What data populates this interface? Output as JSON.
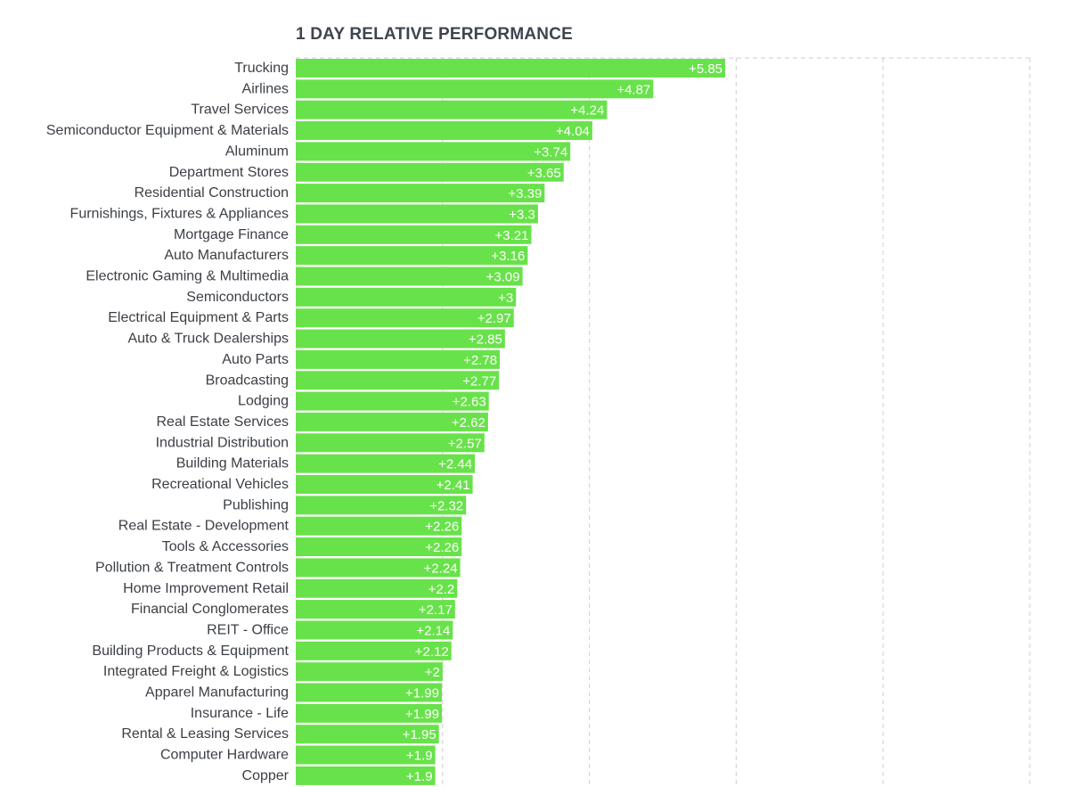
{
  "chart_data": {
    "type": "bar",
    "orientation": "horizontal",
    "title": "1 DAY RELATIVE PERFORMANCE",
    "xlabel": "",
    "ylabel": "",
    "xlim": [
      0,
      10
    ],
    "grid": true,
    "bar_color": "#68e24a",
    "grid_color": "#cfcfcf",
    "label_color": "#3b3f45",
    "value_label_color": "#ffffff",
    "categories": [
      "Trucking",
      "Airlines",
      "Travel Services",
      "Semiconductor Equipment & Materials",
      "Aluminum",
      "Department Stores",
      "Residential Construction",
      "Furnishings, Fixtures & Appliances",
      "Mortgage Finance",
      "Auto Manufacturers",
      "Electronic Gaming & Multimedia",
      "Semiconductors",
      "Electrical Equipment & Parts",
      "Auto & Truck Dealerships",
      "Auto Parts",
      "Broadcasting",
      "Lodging",
      "Real Estate Services",
      "Industrial Distribution",
      "Building Materials",
      "Recreational Vehicles",
      "Publishing",
      "Real Estate - Development",
      "Tools & Accessories",
      "Pollution & Treatment Controls",
      "Home Improvement Retail",
      "Financial Conglomerates",
      "REIT - Office",
      "Building Products & Equipment",
      "Integrated Freight & Logistics",
      "Apparel Manufacturing",
      "Insurance - Life",
      "Rental & Leasing Services",
      "Computer Hardware",
      "Copper"
    ],
    "values": [
      5.85,
      4.87,
      4.24,
      4.04,
      3.74,
      3.65,
      3.39,
      3.3,
      3.21,
      3.16,
      3.09,
      3,
      2.97,
      2.85,
      2.78,
      2.77,
      2.63,
      2.62,
      2.57,
      2.44,
      2.41,
      2.32,
      2.26,
      2.26,
      2.24,
      2.2,
      2.17,
      2.14,
      2.12,
      2,
      1.99,
      1.99,
      1.95,
      1.9,
      1.9
    ],
    "value_labels": [
      "+5.85",
      "+4.87",
      "+4.24",
      "+4.04",
      "+3.74",
      "+3.65",
      "+3.39",
      "+3.3",
      "+3.21",
      "+3.16",
      "+3.09",
      "+3",
      "+2.97",
      "+2.85",
      "+2.78",
      "+2.77",
      "+2.63",
      "+2.62",
      "+2.57",
      "+2.44",
      "+2.41",
      "+2.32",
      "+2.26",
      "+2.26",
      "+2.24",
      "+2.2",
      "+2.17",
      "+2.14",
      "+2.12",
      "+2",
      "+1.99",
      "+1.99",
      "+1.95",
      "+1.9",
      "+1.9"
    ]
  }
}
